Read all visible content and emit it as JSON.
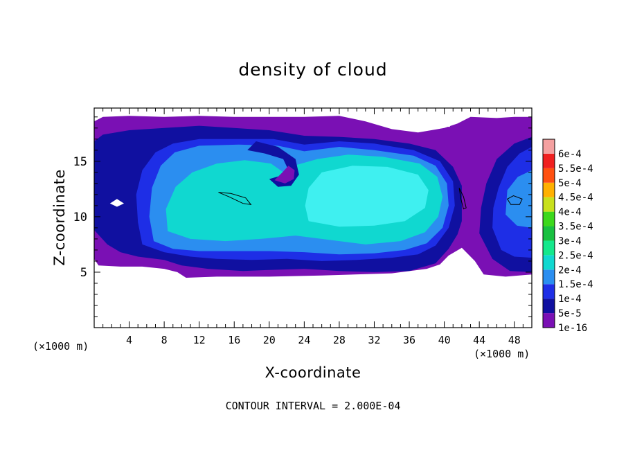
{
  "chart_data": {
    "type": "heatmap",
    "title": "density of cloud",
    "xlabel": "X-coordinate",
    "ylabel": "Z-coordinate",
    "x_unit_label": "(×1000 m)",
    "xlim": [
      0,
      50
    ],
    "ylim": [
      0,
      19.8
    ],
    "x_ticks": [
      4,
      8,
      12,
      16,
      20,
      24,
      28,
      32,
      36,
      40,
      44,
      48
    ],
    "y_ticks": [
      5,
      10,
      15
    ],
    "note": "CONTOUR INTERVAL = 2.000E-04",
    "colorbar": {
      "levels": [
        {
          "label": "1e-16",
          "color": "#7a10b4"
        },
        {
          "label": "5e-5",
          "color": "#1010a0"
        },
        {
          "label": "1e-4",
          "color": "#1e2ee6"
        },
        {
          "label": "1.5e-4",
          "color": "#2b8ef0"
        },
        {
          "label": "2e-4",
          "color": "#10d8d0"
        },
        {
          "label": "2.5e-4",
          "color": "#14e88c"
        },
        {
          "label": "3e-4",
          "color": "#18c040"
        },
        {
          "label": "3.5e-4",
          "color": "#3cd81c"
        },
        {
          "label": "4e-4",
          "color": "#c8e01c"
        },
        {
          "label": "4.5e-4",
          "color": "#ffb000"
        },
        {
          "label": "5e-4",
          "color": "#ff5010"
        },
        {
          "label": "5.5e-4",
          "color": "#f02020"
        },
        {
          "label": "6e-4",
          "color": "#f4a0a0"
        }
      ]
    },
    "cloud_field": {
      "base_z": 5.0,
      "top_z": 19.0,
      "colors": {
        "edge": "#7a10b4",
        "outer": "#1010a0",
        "mid": "#1e2ee6",
        "inner": "#2b8ef0",
        "core": "#10d8d0",
        "peak": "#3ff0f0"
      }
    }
  }
}
